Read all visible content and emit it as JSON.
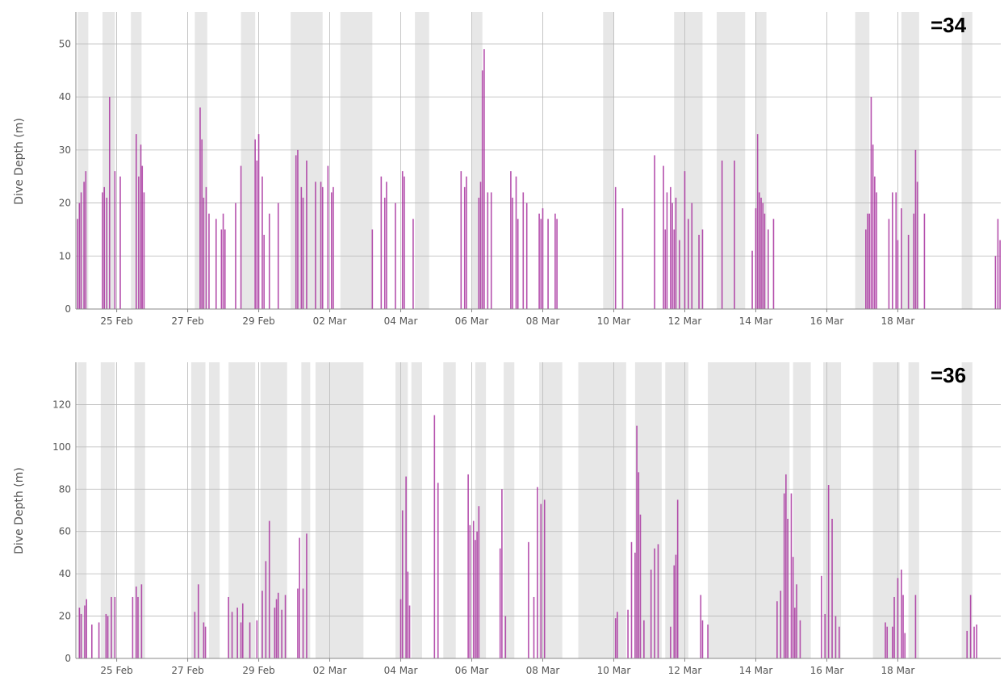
{
  "colors": {
    "dive": "#a8329f",
    "shade": "#e7e7e7",
    "grid": "#b8b8b8",
    "axis": "#888888",
    "text": "#555555"
  },
  "chart_data": [
    {
      "type": "bar",
      "title": "",
      "corner_label": "=34",
      "xlabel": "",
      "ylabel": "Dive Depth (m)",
      "ylim": [
        0,
        56
      ],
      "yticks": [
        "0",
        "10",
        "20",
        "30",
        "40",
        "50"
      ],
      "ytick_values": [
        0,
        10,
        20,
        30,
        40,
        50
      ],
      "xlim": [
        23.85,
        49.9
      ],
      "xticks": [
        "25 Feb",
        "27 Feb",
        "29 Feb",
        "02 Mar",
        "04 Mar",
        "06 Mar",
        "08 Mar",
        "10 Mar",
        "12 Mar",
        "14 Mar",
        "16 Mar",
        "18 Mar"
      ],
      "xtick_values": [
        25,
        27,
        29,
        31,
        33,
        35,
        37,
        39,
        41,
        43,
        45,
        47
      ],
      "grid": true,
      "shaded_periods": [
        [
          23.9,
          24.2
        ],
        [
          24.6,
          24.95
        ],
        [
          25.4,
          25.7
        ],
        [
          27.2,
          27.55
        ],
        [
          28.5,
          28.9
        ],
        [
          29.9,
          30.8
        ],
        [
          31.3,
          32.2
        ],
        [
          33.4,
          33.8
        ],
        [
          35.0,
          35.3
        ],
        [
          38.7,
          39.0
        ],
        [
          40.7,
          41.5
        ],
        [
          41.9,
          42.7
        ],
        [
          43.0,
          43.3
        ],
        [
          45.8,
          46.2
        ],
        [
          47.1,
          47.6
        ],
        [
          48.8,
          49.1
        ]
      ],
      "series": [
        {
          "x": [
            23.9,
            23.95,
            24.0,
            24.08,
            24.13,
            24.6,
            24.65,
            24.72,
            24.8,
            24.95,
            25.1,
            25.55,
            25.62,
            25.68,
            25.72,
            25.77,
            27.35,
            27.4,
            27.45,
            27.52,
            27.6,
            27.8,
            27.95,
            28.0,
            28.05,
            28.35,
            28.5,
            28.9,
            28.95,
            29.0,
            29.1,
            29.15,
            29.3,
            29.55,
            30.05,
            30.1,
            30.2,
            30.25,
            30.35,
            30.6,
            30.75,
            30.8,
            30.95,
            31.05,
            31.1,
            32.2,
            32.45,
            32.55,
            32.6,
            32.85,
            33.05,
            33.1,
            33.35,
            34.7,
            34.8,
            34.85,
            35.2,
            35.25,
            35.3,
            35.35,
            35.45,
            35.55,
            36.1,
            36.15,
            36.25,
            36.3,
            36.45,
            36.55,
            36.9,
            36.95,
            37.0,
            37.15,
            37.35,
            37.4,
            39.05,
            39.25,
            40.15,
            40.4,
            40.45,
            40.5,
            40.6,
            40.65,
            40.7,
            40.75,
            40.85,
            41.0,
            41.1,
            41.2,
            41.4,
            41.5,
            42.05,
            42.4,
            42.9,
            43.0,
            43.05,
            43.1,
            43.15,
            43.2,
            43.25,
            43.35,
            43.5,
            46.1,
            46.15,
            46.2,
            46.25,
            46.3,
            46.35,
            46.4,
            46.75,
            46.85,
            46.95,
            47.0,
            47.1,
            47.3,
            47.45,
            47.5,
            47.55,
            47.75,
            49.75,
            49.82,
            49.88
          ],
          "values": [
            17,
            20,
            22,
            24,
            26,
            22,
            23,
            21,
            40,
            26,
            25,
            33,
            25,
            31,
            27,
            22,
            38,
            32,
            21,
            23,
            18,
            17,
            15,
            18,
            15,
            20,
            27,
            32,
            28,
            33,
            25,
            14,
            18,
            20,
            29,
            30,
            23,
            21,
            28,
            24,
            24,
            23,
            27,
            22,
            23,
            15,
            25,
            21,
            24,
            20,
            26,
            25,
            17,
            26,
            23,
            25,
            21,
            24,
            45,
            49,
            22,
            22,
            26,
            21,
            25,
            17,
            22,
            20,
            18,
            17,
            19,
            17,
            18,
            17,
            23,
            19,
            29,
            27,
            15,
            22,
            23,
            20,
            15,
            21,
            13,
            26,
            17,
            20,
            14,
            15,
            28,
            28,
            11,
            19,
            33,
            22,
            21,
            20,
            18,
            15,
            17,
            15,
            18,
            18,
            40,
            31,
            25,
            22,
            17,
            22,
            22,
            13,
            19,
            14,
            18,
            30,
            24,
            18,
            10,
            17,
            13
          ]
        }
      ]
    },
    {
      "type": "bar",
      "title": "",
      "corner_label": "=36",
      "xlabel": "",
      "ylabel": "Dive Depth (m)",
      "ylim": [
        0,
        140
      ],
      "yticks": [
        "0",
        "20",
        "40",
        "60",
        "80",
        "100",
        "120"
      ],
      "ytick_values": [
        0,
        20,
        40,
        60,
        80,
        100,
        120
      ],
      "xlim": [
        23.85,
        49.9
      ],
      "xticks": [
        "25 Feb",
        "27 Feb",
        "29 Feb",
        "02 Mar",
        "04 Mar",
        "06 Mar",
        "08 Mar",
        "10 Mar",
        "12 Mar",
        "14 Mar",
        "16 Mar",
        "18 Mar"
      ],
      "xtick_values": [
        25,
        27,
        29,
        31,
        33,
        35,
        37,
        39,
        41,
        43,
        45,
        47
      ],
      "grid": true,
      "shaded_periods": [
        [
          23.9,
          24.15
        ],
        [
          24.55,
          24.95
        ],
        [
          25.5,
          25.8
        ],
        [
          27.1,
          27.5
        ],
        [
          27.6,
          27.9
        ],
        [
          28.15,
          28.9
        ],
        [
          29.05,
          29.8
        ],
        [
          30.2,
          30.45
        ],
        [
          30.6,
          31.95
        ],
        [
          32.85,
          33.2
        ],
        [
          33.3,
          33.6
        ],
        [
          34.2,
          34.55
        ],
        [
          35.1,
          35.4
        ],
        [
          35.9,
          36.2
        ],
        [
          36.9,
          37.55
        ],
        [
          38.0,
          39.35
        ],
        [
          39.6,
          40.35
        ],
        [
          40.45,
          41.1
        ],
        [
          41.65,
          43.95
        ],
        [
          44.05,
          44.55
        ],
        [
          44.9,
          45.4
        ],
        [
          46.3,
          47.05
        ],
        [
          47.3,
          47.6
        ],
        [
          48.8,
          49.1
        ]
      ],
      "series": [
        {
          "x": [
            23.95,
            24.0,
            24.1,
            24.15,
            24.3,
            24.5,
            24.7,
            24.75,
            24.85,
            24.95,
            25.45,
            25.55,
            25.6,
            25.7,
            27.2,
            27.3,
            27.45,
            27.5,
            28.15,
            28.25,
            28.4,
            28.5,
            28.55,
            28.75,
            28.95,
            29.1,
            29.2,
            29.3,
            29.45,
            29.5,
            29.55,
            29.65,
            29.75,
            30.1,
            30.15,
            30.25,
            30.35,
            33.0,
            33.05,
            33.15,
            33.2,
            33.25,
            33.95,
            34.05,
            34.9,
            34.95,
            35.05,
            35.1,
            35.15,
            35.2,
            35.8,
            35.85,
            35.95,
            36.6,
            36.75,
            36.85,
            36.95,
            37.05,
            39.05,
            39.1,
            39.4,
            39.5,
            39.6,
            39.65,
            39.7,
            39.75,
            39.85,
            40.05,
            40.15,
            40.25,
            40.6,
            40.7,
            40.75,
            40.8,
            41.45,
            41.5,
            41.65,
            43.6,
            43.7,
            43.8,
            43.85,
            43.9,
            44.0,
            44.05,
            44.1,
            44.15,
            44.25,
            44.85,
            44.95,
            45.05,
            45.15,
            45.25,
            45.35,
            46.65,
            46.7,
            46.85,
            46.9,
            47.0,
            47.1,
            47.15,
            47.2,
            47.5,
            48.95,
            49.05,
            49.15,
            49.22
          ],
          "values": [
            24,
            21,
            25,
            28,
            16,
            17,
            21,
            20,
            29,
            29,
            29,
            34,
            29,
            35,
            22,
            35,
            17,
            15,
            29,
            22,
            24,
            17,
            26,
            17,
            18,
            32,
            46,
            65,
            24,
            28,
            31,
            23,
            30,
            33,
            57,
            33,
            59,
            28,
            70,
            86,
            41,
            25,
            115,
            83,
            87,
            63,
            65,
            56,
            60,
            72,
            52,
            80,
            20,
            55,
            29,
            81,
            73,
            75,
            19,
            22,
            23,
            55,
            50,
            110,
            88,
            68,
            18,
            42,
            52,
            54,
            15,
            44,
            49,
            75,
            30,
            18,
            16,
            27,
            32,
            78,
            87,
            66,
            78,
            48,
            24,
            35,
            18,
            39,
            21,
            82,
            66,
            20,
            15,
            17,
            15,
            15,
            29,
            38,
            42,
            30,
            12,
            30,
            13,
            30,
            15,
            16
          ]
        }
      ]
    }
  ]
}
